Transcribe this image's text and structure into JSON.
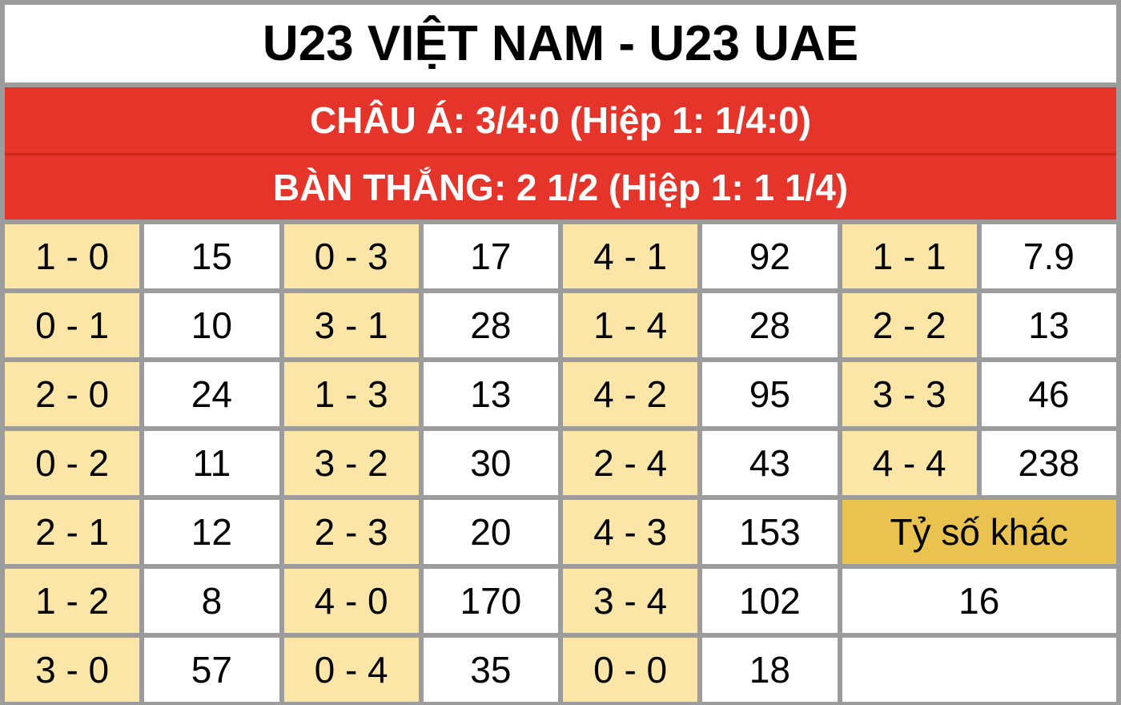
{
  "title": "U23 VIỆT NAM - U23 UAE",
  "handicap": "CHÂU Á: 3/4:0 (Hiệp 1: 1/4:0)",
  "total_goals": "BÀN THẮNG: 2 1/2 (Hiệp 1: 1 1/4)",
  "colors": {
    "header_red": "#e5352a",
    "score_cell": "#fbe5a7",
    "other_cell": "#e9c24f",
    "border": "#9c9c9c"
  },
  "rows": [
    [
      {
        "score": "1 - 0",
        "odds": "15"
      },
      {
        "score": "0 - 3",
        "odds": "17"
      },
      {
        "score": "4 - 1",
        "odds": "92"
      },
      {
        "score": "1 - 1",
        "odds": "7.9"
      }
    ],
    [
      {
        "score": "0 - 1",
        "odds": "10"
      },
      {
        "score": "3 - 1",
        "odds": "28"
      },
      {
        "score": "1 - 4",
        "odds": "28"
      },
      {
        "score": "2 - 2",
        "odds": "13"
      }
    ],
    [
      {
        "score": "2 - 0",
        "odds": "24"
      },
      {
        "score": "1 - 3",
        "odds": "13"
      },
      {
        "score": "4 - 2",
        "odds": "95"
      },
      {
        "score": "3 - 3",
        "odds": "46"
      }
    ],
    [
      {
        "score": "0 - 2",
        "odds": "11"
      },
      {
        "score": "3 - 2",
        "odds": "30"
      },
      {
        "score": "2 - 4",
        "odds": "43"
      },
      {
        "score": "4 - 4",
        "odds": "238"
      }
    ],
    [
      {
        "score": "2 - 1",
        "odds": "12"
      },
      {
        "score": "2 - 3",
        "odds": "20"
      },
      {
        "score": "4 - 3",
        "odds": "153"
      }
    ],
    [
      {
        "score": "1 - 2",
        "odds": "8"
      },
      {
        "score": "4 - 0",
        "odds": "170"
      },
      {
        "score": "3 - 4",
        "odds": "102"
      }
    ],
    [
      {
        "score": "3 - 0",
        "odds": "57"
      },
      {
        "score": "0 - 4",
        "odds": "35"
      },
      {
        "score": "0 - 0",
        "odds": "18"
      }
    ]
  ],
  "other": {
    "label": "Tỷ số khác",
    "odds": "16"
  }
}
